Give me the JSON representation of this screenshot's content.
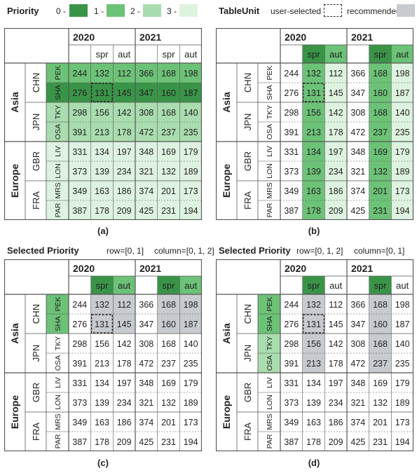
{
  "colors": {
    "p0": "#3a9448",
    "p1": "#6cc277",
    "p2": "#a9dcae",
    "p3": "#def3df",
    "recommended": "#c7cbcf",
    "grid": "#555555"
  },
  "legend": {
    "priority_label": "Priority",
    "levels": [
      "0 -",
      "1 -",
      "2 -",
      "3 -"
    ],
    "tableunit_label": "TableUnit",
    "user_selected_label": "user-selected",
    "recommended_label": "recommended"
  },
  "table": {
    "years": [
      "2020",
      "2021"
    ],
    "seasons": [
      "spr",
      "aut"
    ],
    "regions": [
      {
        "name": "Asia",
        "countries": [
          {
            "name": "CHN",
            "cities": [
              "PEK",
              "SHA"
            ]
          },
          {
            "name": "JPN",
            "cities": [
              "TKY",
              "OSA"
            ]
          }
        ]
      },
      {
        "name": "Europe",
        "countries": [
          {
            "name": "GBR",
            "cities": [
              "LIV",
              "LON"
            ]
          },
          {
            "name": "FRA",
            "cities": [
              "MRS",
              "PAR"
            ]
          }
        ]
      }
    ],
    "rows": [
      [
        "244",
        "132",
        "112",
        "366",
        "168",
        "198"
      ],
      [
        "276",
        "131",
        "145",
        "347",
        "160",
        "187"
      ],
      [
        "298",
        "156",
        "142",
        "308",
        "168",
        "140"
      ],
      [
        "391",
        "213",
        "178",
        "472",
        "237",
        "235"
      ],
      [
        "331",
        "134",
        "197",
        "348",
        "169",
        "179"
      ],
      [
        "373",
        "139",
        "234",
        "321",
        "132",
        "189"
      ],
      [
        "349",
        "163",
        "186",
        "374",
        "201",
        "173"
      ],
      [
        "387",
        "178",
        "209",
        "425",
        "231",
        "194"
      ]
    ]
  },
  "panels": [
    {
      "caption": "(a)",
      "mode": "row"
    },
    {
      "caption": "(b)",
      "mode": "col"
    },
    {
      "caption": "(c)",
      "mode": "sel",
      "selRows": [
        0,
        1
      ],
      "selCols": [
        1,
        2,
        4,
        5
      ],
      "selected_title": "Selected Priority",
      "row_text": "row=[0, 1]",
      "col_text": "column=[0, 1, 2]"
    },
    {
      "caption": "(d)",
      "mode": "sel",
      "selRows": [
        0,
        1,
        2,
        3
      ],
      "selCols": [
        1,
        4
      ],
      "selected_title": "Selected Priority",
      "row_text": "row=[0, 1, 2]",
      "col_text": "column=[0, 1]"
    }
  ]
}
